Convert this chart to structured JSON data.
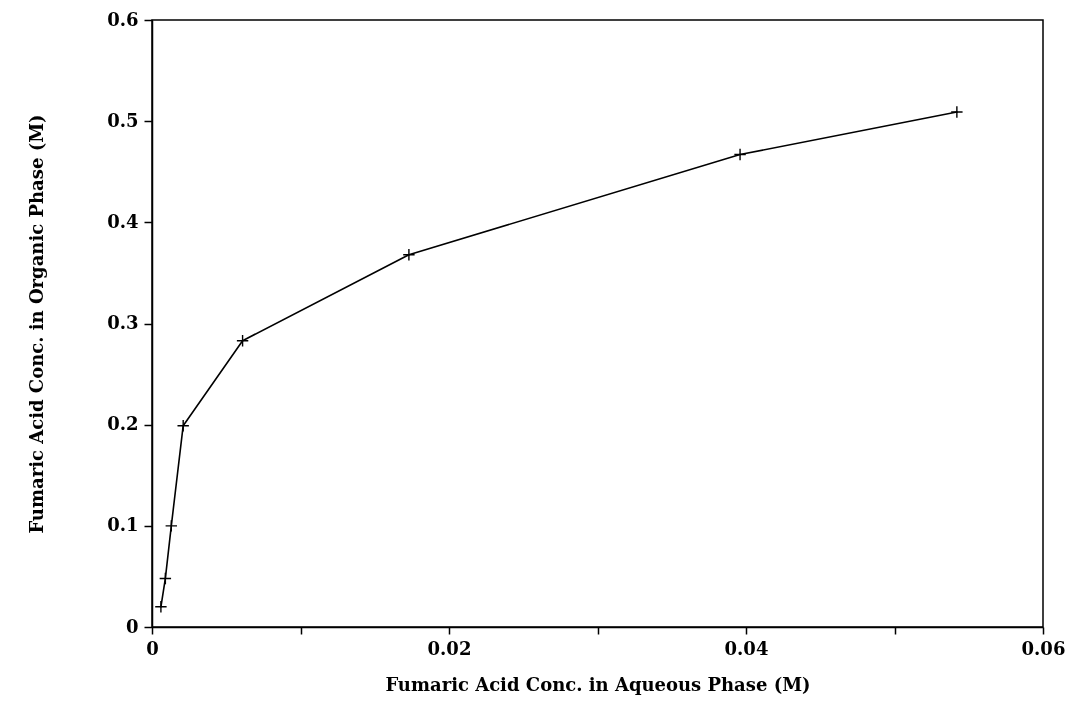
{
  "chart_data": {
    "type": "line",
    "xlabel": "Fumaric Acid Conc. in Aqueous Phase (M)",
    "ylabel": "Fumaric Acid Conc. in Organic Phase (M)",
    "x": [
      0.0006,
      0.0009,
      0.0013,
      0.0021,
      0.0061,
      0.0173,
      0.0396,
      0.0542
    ],
    "series": [
      {
        "color": "#000000",
        "values": [
          0.02,
          0.048,
          0.1,
          0.199,
          0.283,
          0.368,
          0.467,
          0.509
        ]
      }
    ],
    "xlim": [
      0,
      0.06
    ],
    "ylim": [
      0,
      0.6
    ],
    "xticks": [
      0,
      {
        "value": 0.01,
        "label": null
      },
      0.02,
      {
        "value": 0.03,
        "label": null
      },
      0.04,
      {
        "value": 0.05,
        "label": null
      },
      0.06
    ],
    "yticks": [
      0,
      0.1,
      0.2,
      0.3,
      0.4,
      0.5,
      0.6
    ],
    "grid": false,
    "marker": "cross",
    "line_style": "solid"
  }
}
